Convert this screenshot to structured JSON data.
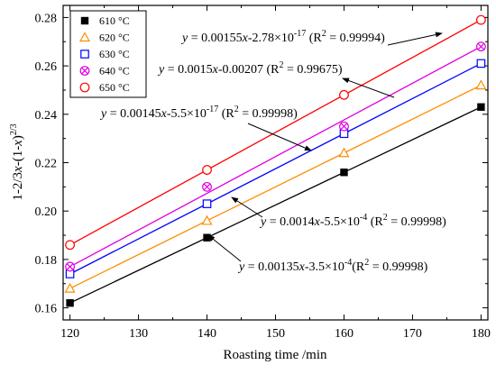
{
  "chart_data": {
    "type": "scatter",
    "title": "",
    "xlabel": "Roasting time /min",
    "ylabel": "1-2/3x-(1-x)^(2/3)",
    "xlim": [
      119,
      181
    ],
    "ylim": [
      0.155,
      0.285
    ],
    "xticks": [
      120,
      130,
      140,
      150,
      160,
      170,
      180
    ],
    "yticks": [
      0.16,
      0.18,
      0.2,
      0.22,
      0.24,
      0.26,
      0.28
    ],
    "grid": false,
    "legend_position": "top-left",
    "x": [
      120,
      140,
      160,
      180
    ],
    "series": [
      {
        "name": "610 °C",
        "marker": "filled-square",
        "color": "#000000",
        "values": [
          0.162,
          0.189,
          0.216,
          0.243
        ],
        "fit": {
          "slope": 0.00135,
          "intercept": -0.00035
        },
        "equation": "y = 0.00135x-3.5×10⁻⁴ (R² = 0.99998)"
      },
      {
        "name": "620 °C",
        "marker": "open-triangle",
        "color": "#FF8C00",
        "values": [
          0.168,
          0.196,
          0.224,
          0.252
        ],
        "fit": {
          "slope": 0.0014,
          "intercept": -0.00055
        },
        "equation": "y = 0.0014x-5.5×10⁻⁴ (R² = 0.99998)"
      },
      {
        "name": "630 °C",
        "marker": "open-square",
        "color": "#0000FF",
        "values": [
          0.174,
          0.203,
          0.232,
          0.261
        ],
        "fit": {
          "slope": 0.00145,
          "intercept": 0
        },
        "equation": "y = 0.00145x-5.5×10⁻¹⁷ (R² = 0.99998)"
      },
      {
        "name": "640 °C",
        "marker": "x-circle",
        "color": "#E000E0",
        "values": [
          0.177,
          0.21,
          0.235,
          0.268
        ],
        "fit": {
          "slope": 0.0015,
          "intercept": -0.00207
        },
        "equation": "y = 0.0015x-0.00207 (R² = 0.99675)"
      },
      {
        "name": "650 °C",
        "marker": "open-circle",
        "color": "#FF0000",
        "values": [
          0.186,
          0.217,
          0.248,
          0.279
        ],
        "fit": {
          "slope": 0.00155,
          "intercept": 0
        },
        "equation": "y = 0.00155x-2.78×10⁻¹⁷ (R² = 0.99994)"
      }
    ]
  }
}
